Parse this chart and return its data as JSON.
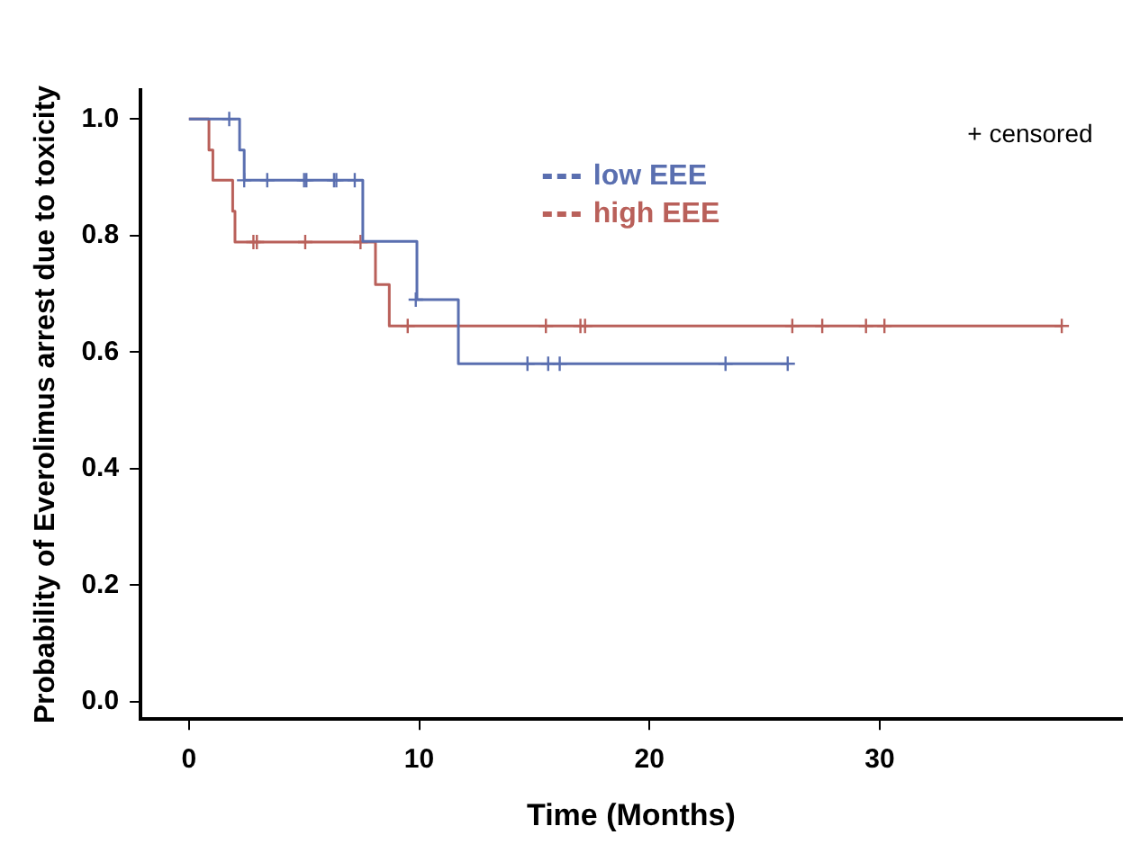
{
  "chart_data": {
    "type": "step",
    "xlabel": "Time (Months)",
    "ylabel": "Probability of Everolimus arrest due to toxicity",
    "xlim": [
      -2.1,
      40.5
    ],
    "xticks": [
      0,
      10,
      20,
      30
    ],
    "ylim": [
      -0.03,
      1.05
    ],
    "yticks": [
      {
        "value": 0,
        "label": "0.0"
      },
      {
        "value": 0.2,
        "label": "0.2"
      },
      {
        "value": 0.4,
        "label": "0.4"
      },
      {
        "value": 0.6,
        "label": "0.6"
      },
      {
        "value": 0.8,
        "label": "0.8"
      },
      {
        "value": 1,
        "label": "1.0"
      }
    ],
    "grid": false,
    "legend": "top right",
    "annotations": [
      "+ censored"
    ],
    "series": [
      {
        "name": "low EEE",
        "color": "#5a6fb0",
        "type": "step",
        "x": [
          0,
          2.2,
          2.4,
          7.55,
          9.9,
          11.7,
          26.0
        ],
        "values": [
          1,
          0.947,
          0.895,
          0.79,
          0.69,
          0.58,
          0.58
        ]
      },
      {
        "name": "high EEE",
        "color": "#b9605a",
        "type": "step",
        "x": [
          0,
          0.87,
          1.04,
          1.9,
          2.0,
          8.1,
          8.7,
          37.9
        ],
        "values": [
          1,
          0.947,
          0.895,
          0.842,
          0.789,
          0.716,
          0.645,
          0.645
        ]
      },
      {
        "color": "#5a6fb0",
        "type": "scatter",
        "marker": "cross",
        "x": [
          1.75,
          2.4,
          3.4,
          5.0,
          5.1,
          6.3,
          6.4,
          7.2,
          9.85,
          14.7,
          15.6,
          16.1,
          23.3,
          26.0
        ],
        "values": [
          1,
          0.895,
          0.895,
          0.895,
          0.895,
          0.895,
          0.895,
          0.895,
          0.69,
          0.58,
          0.58,
          0.58,
          0.58,
          0.58
        ]
      },
      {
        "color": "#b9605a",
        "type": "scatter",
        "marker": "cross",
        "x": [
          2.8,
          2.95,
          5.05,
          7.45,
          9.5,
          15.5,
          17.0,
          17.2,
          26.2,
          27.5,
          29.4,
          30.2,
          37.9
        ],
        "values": [
          0.789,
          0.789,
          0.789,
          0.789,
          0.645,
          0.645,
          0.645,
          0.645,
          0.645,
          0.645,
          0.645,
          0.645,
          0.645
        ]
      }
    ]
  }
}
